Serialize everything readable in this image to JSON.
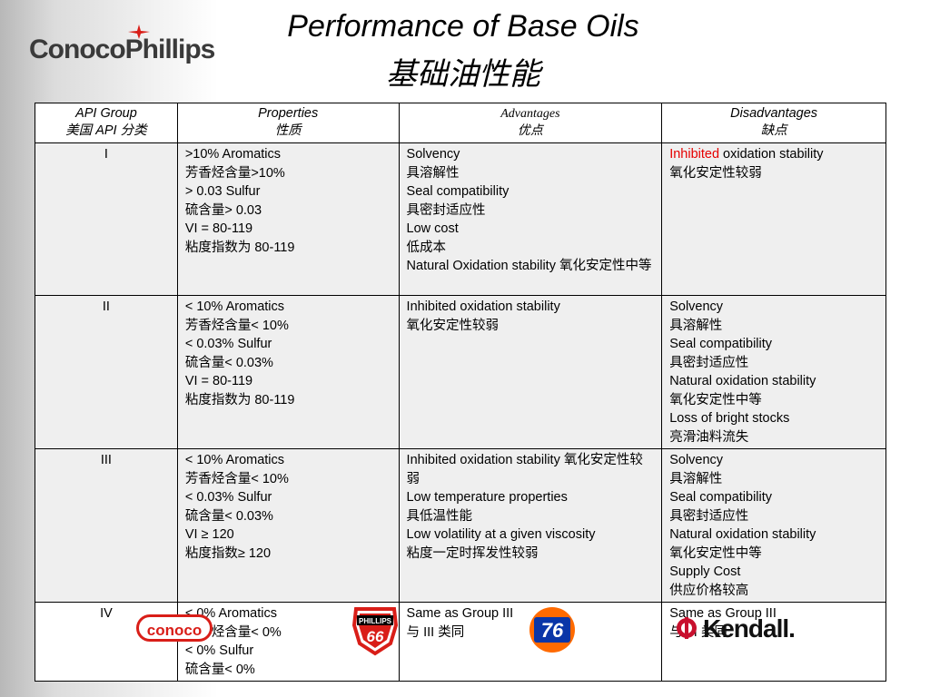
{
  "header": {
    "logo_text": "ConocoPhillips",
    "title_en": "Performance of Base Oils",
    "title_zh": "基础油性能"
  },
  "table": {
    "headers": [
      {
        "en": "API Group",
        "zh": "美国 API 分类"
      },
      {
        "en": "Properties",
        "zh": "性质"
      },
      {
        "en": "Advantages",
        "zh": "优点"
      },
      {
        "en": "Disadvantages",
        "zh": "缺点"
      }
    ],
    "rows": [
      {
        "group": "I",
        "properties": [
          ">10% Aromatics",
          "芳香烃含量>10%",
          "> 0.03 Sulfur",
          "硫含量> 0.03",
          "VI = 80-119",
          "粘度指数为 80-119"
        ],
        "advantages": [
          "Solvency",
          "具溶解性",
          "Seal compatibility",
          "具密封适应性",
          "Low cost",
          "低成本",
          "Natural Oxidation stability 氧化安定性中等"
        ],
        "disadvantages_red": "Inhibited",
        "disadvantages_rest": " oxidation stability",
        "disadvantages": [
          "氧化安定性较弱"
        ]
      },
      {
        "group": "II",
        "properties": [
          "< 10% Aromatics",
          "芳香烃含量< 10%",
          "< 0.03% Sulfur",
          "硫含量< 0.03%",
          "VI = 80-119",
          "粘度指数为 80-119"
        ],
        "advantages": [
          "Inhibited oxidation stability",
          "氧化安定性较弱"
        ],
        "disadvantages": [
          "Solvency",
          "具溶解性",
          "Seal compatibility",
          "具密封适应性",
          "Natural oxidation stability",
          "氧化安定性中等",
          "Loss of bright stocks",
          "亮滑油料流失"
        ]
      },
      {
        "group": "III",
        "properties": [
          "< 10% Aromatics",
          "芳香烃含量< 10%",
          "< 0.03% Sulfur",
          "硫含量< 0.03%",
          "VI ≥ 120",
          "粘度指数≥ 120"
        ],
        "advantages": [
          "Inhibited oxidation stability 氧化安定性较弱",
          "Low temperature properties",
          "具低温性能",
          "Low volatility at a given viscosity",
          "粘度一定时挥发性较弱"
        ],
        "disadvantages": [
          "Solvency",
          "具溶解性",
          "Seal compatibility",
          "具密封适应性",
          "Natural oxidation stability",
          "氧化安定性中等",
          "Supply Cost",
          "供应价格较高"
        ]
      },
      {
        "group": "IV",
        "properties": [
          "< 0% Aromatics",
          "芳香烃含量< 0%",
          "< 0% Sulfur",
          "硫含量< 0%"
        ],
        "advantages": [
          "Same as Group III",
          "与 III 类同"
        ],
        "disadvantages": [
          "Same as Group III",
          "与 III 类同"
        ]
      }
    ]
  },
  "brands": {
    "conoco": "conoco",
    "phillips_top": "PHILLIPS",
    "phillips_num": "66",
    "union76": "76",
    "kendall": "Kendall."
  },
  "colors": {
    "accent_red": "#e60000",
    "shade": "#efefef"
  }
}
